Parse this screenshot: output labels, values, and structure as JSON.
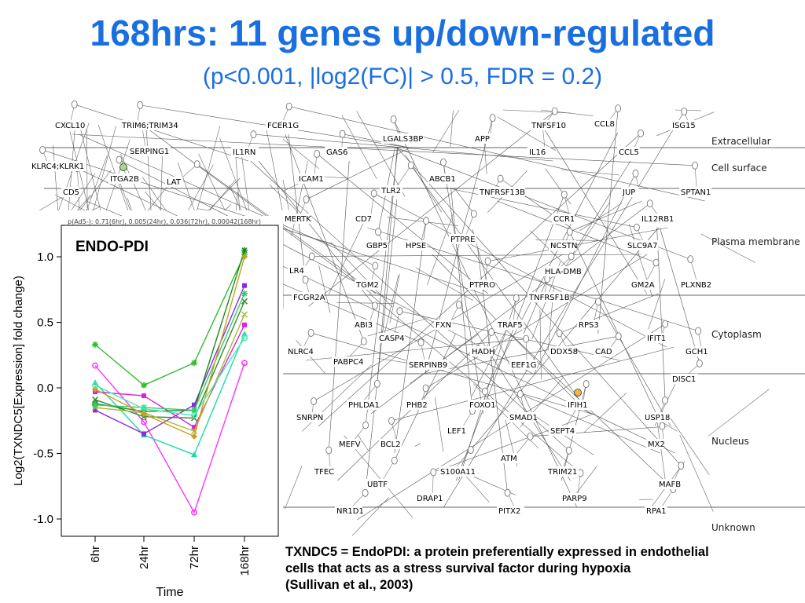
{
  "slide": {
    "title": "168hrs: 11 genes up/down-regulated",
    "subtitle": "(p<0.001, |log2(FC)| > 0.5, FDR = 0.2)",
    "caption_lines": [
      "TXNDC5 = EndoPDI: a protein preferentially expressed in endothelial",
      "cells that acts as a stress survival factor during hypoxia",
      "(Sullivan et al., 2003)"
    ]
  },
  "network": {
    "compartments": [
      "Extracellular",
      "Cell surface",
      "Plasma membrane",
      "Cytoplasm",
      "Nucleus",
      "Unknown"
    ],
    "genes": [
      "CXCL10",
      "TRIM6;TRIM34",
      "FCER1G",
      "TNFSF10",
      "CCL8",
      "ISG15",
      "LGALS3BP",
      "APP",
      "SERPING1",
      "IL1RN",
      "GAS6",
      "IL16",
      "CCL5",
      "KLRC4;KLRK1",
      "ITGA2B",
      "LAT",
      "ICAM1",
      "ABCB1",
      "CD5",
      "TLR2",
      "TNFRSF13B",
      "JUP",
      "SPTAN1",
      "MERTK",
      "CD7",
      "CCR1",
      "IL12RB1",
      "PTPRE",
      "GBP5",
      "HPSE",
      "NCSTN",
      "SLC9A7",
      "HLA-DMB",
      "LR4",
      "TGM2",
      "PTPRO",
      "GM2A",
      "PLXNB2",
      "FCGR2A",
      "TNFRSF1B",
      "ABI3",
      "FXN",
      "TRAF5",
      "RPS3",
      "CASP4",
      "IFIT1",
      "NLRC4",
      "HADH",
      "DDX58",
      "CAD",
      "GCH1",
      "PABPC4",
      "SERPINB9",
      "EEF1G",
      "DISC1",
      "PHLDA1",
      "PHB2",
      "FOXO1",
      "IFIH1",
      "SNRPN",
      "SMAD1",
      "USP18",
      "LEF1",
      "SEPT4",
      "MEFV",
      "BCL2",
      "MX2",
      "ATM",
      "TFEC",
      "S100A11",
      "TRIM21",
      "UBTF",
      "MAFB",
      "DRAP1",
      "PARP9",
      "NR1D1",
      "PITX2",
      "RPA1"
    ],
    "colors": {
      "line": "#555555",
      "divider": "#666666",
      "highlight_green": "#a8d88a",
      "highlight_orange": "#f5b642"
    }
  },
  "chart_data": {
    "type": "line",
    "title": "ENDO-PDI",
    "subtitle": "p(Ad5-): 0.71(6hr), 0.005(24hr), 0.036(72hr), 0.00042(168hr)",
    "xlabel": "Time",
    "ylabel": "Log2(TXNDC5[Expression] fold change)",
    "categories": [
      "6hr",
      "24hr",
      "72hr",
      "168hr"
    ],
    "ylim": [
      -1.1,
      1.2
    ],
    "yticks": [
      "1.0",
      "0.5",
      "0.0",
      "-0.5",
      "-1.0"
    ],
    "ytick_values": [
      1.0,
      0.5,
      0.0,
      -0.5,
      -1.0
    ],
    "grid": false,
    "series": [
      {
        "color": "#2ebd2e",
        "marker": "star",
        "values": [
          0.33,
          0.02,
          0.19,
          1.02
        ]
      },
      {
        "color": "#ff33ff",
        "marker": "circle",
        "values": [
          0.17,
          -0.26,
          -0.95,
          0.19
        ]
      },
      {
        "color": "#1fd9a6",
        "marker": "triangle",
        "values": [
          0.04,
          -0.36,
          -0.51,
          0.41
        ]
      },
      {
        "color": "#e020e0",
        "marker": "square",
        "values": [
          -0.03,
          -0.06,
          -0.3,
          0.48
        ]
      },
      {
        "color": "#8a2be2",
        "marker": "square",
        "values": [
          -0.17,
          -0.35,
          -0.13,
          0.78
        ]
      },
      {
        "color": "#338833",
        "marker": "x",
        "values": [
          -0.09,
          -0.22,
          -0.23,
          0.66
        ]
      },
      {
        "color": "#a8b838",
        "marker": "x",
        "values": [
          -0.15,
          -0.19,
          -0.33,
          0.56
        ]
      },
      {
        "color": "#1a8c1a",
        "marker": "star",
        "values": [
          -0.12,
          -0.18,
          -0.17,
          1.05
        ]
      },
      {
        "color": "#33cc66",
        "marker": "star",
        "values": [
          -0.13,
          -0.15,
          -0.17,
          0.72
        ]
      },
      {
        "color": "#c8a020",
        "marker": "diamond",
        "values": [
          -0.01,
          -0.2,
          -0.37,
          1.0
        ]
      },
      {
        "color": "#44eeb0",
        "marker": "circle",
        "values": [
          0.02,
          -0.16,
          -0.21,
          0.38
        ]
      }
    ]
  }
}
